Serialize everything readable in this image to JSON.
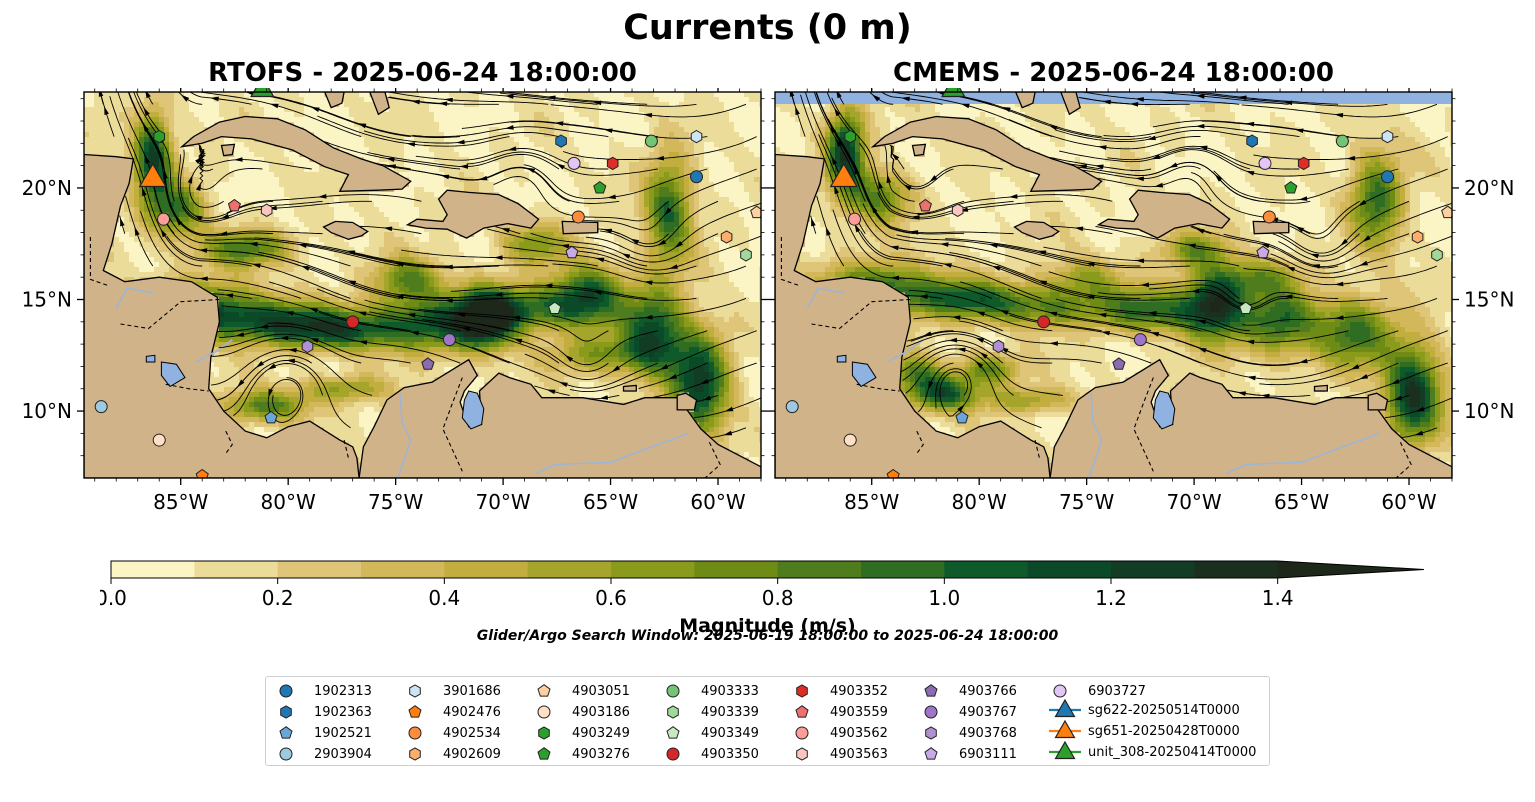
{
  "figure": {
    "suptitle": "Currents (0 m)",
    "search_window": "Glider/Argo Search Window: 2025-06-19 18:00:00 to 2025-06-24 18:00:00"
  },
  "chart_data": [
    {
      "type": "heatmap",
      "title": "RTOFS - 2025-06-24 18:00:00",
      "variable": "surface current magnitude with streamlines",
      "xlim": [
        -89.5,
        -58.0
      ],
      "ylim": [
        7.0,
        24.3
      ],
      "x_ticks": [
        "85°W",
        "80°W",
        "75°W",
        "70°W",
        "65°W",
        "60°W"
      ],
      "y_ticks": [
        "10°N",
        "15°N",
        "20°N"
      ],
      "y_tick_side": "left"
    },
    {
      "type": "heatmap",
      "title": "CMEMS - 2025-06-24 18:00:00",
      "variable": "surface current magnitude with streamlines",
      "xlim": [
        -89.5,
        -58.0
      ],
      "ylim": [
        7.0,
        24.3
      ],
      "x_ticks": [
        "85°W",
        "80°W",
        "75°W",
        "70°W",
        "65°W",
        "60°W"
      ],
      "y_ticks": [
        "10°N",
        "15°N",
        "20°N"
      ],
      "y_tick_side": "right"
    }
  ],
  "colorbar": {
    "label": "Magnitude (m/s)",
    "min": 0.0,
    "max": 1.5,
    "extend": "max",
    "ticks": [
      "0.0",
      "0.2",
      "0.4",
      "0.6",
      "0.8",
      "1.0",
      "1.2",
      "1.4"
    ],
    "colors": [
      "#fbf5c5",
      "#ecdc9a",
      "#dec577",
      "#d2b85a",
      "#c2ad3f",
      "#a4a52a",
      "#8a9a1b",
      "#6e8c15",
      "#4f7c1d",
      "#2f6d23",
      "#0e5a2a",
      "#0b4a28",
      "#133c24",
      "#1b2f1e",
      "#1d281a"
    ]
  },
  "platforms": [
    {
      "id": "1902313",
      "marker": "circle",
      "color": "#1f77b4",
      "lon": -61.0,
      "lat": 20.5
    },
    {
      "id": "1902363",
      "marker": "hexagon",
      "color": "#1f77b4",
      "lon": -67.3,
      "lat": 22.1
    },
    {
      "id": "1902521",
      "marker": "pentagon",
      "color": "#6aa7d8",
      "lon": -80.8,
      "lat": 9.7
    },
    {
      "id": "2903904",
      "marker": "circle",
      "color": "#9ecae1",
      "lon": -88.7,
      "lat": 10.2
    },
    {
      "id": "3901686",
      "marker": "hexagon",
      "color": "#cde4f5",
      "lon": -61.0,
      "lat": 22.3
    },
    {
      "id": "4902476",
      "marker": "pentagon",
      "color": "#ff7f0e",
      "lon": -84.0,
      "lat": 7.1
    },
    {
      "id": "4902534",
      "marker": "circle",
      "color": "#fd8d3c",
      "lon": -66.5,
      "lat": 18.7
    },
    {
      "id": "4902609",
      "marker": "hexagon",
      "color": "#fdae6b",
      "lon": -59.6,
      "lat": 17.8
    },
    {
      "id": "4903051",
      "marker": "pentagon",
      "color": "#fdd0a2",
      "lon": -58.2,
      "lat": 18.9
    },
    {
      "id": "4903186",
      "marker": "circle",
      "color": "#fde0c5",
      "lon": -86.0,
      "lat": 8.7
    },
    {
      "id": "4903249",
      "marker": "hexagon",
      "color": "#2ca02c",
      "lon": -86.0,
      "lat": 22.3
    },
    {
      "id": "4903276",
      "marker": "pentagon",
      "color": "#2ca02c",
      "lon": -65.5,
      "lat": 20.0
    },
    {
      "id": "4903333",
      "marker": "circle",
      "color": "#74c476",
      "lon": -63.1,
      "lat": 22.1
    },
    {
      "id": "4903339",
      "marker": "hexagon",
      "color": "#a1d99b",
      "lon": -58.7,
      "lat": 17.0
    },
    {
      "id": "4903349",
      "marker": "pentagon",
      "color": "#c7e9c0",
      "lon": -67.6,
      "lat": 14.6
    },
    {
      "id": "4903350",
      "marker": "circle",
      "color": "#d62728",
      "lon": -77.0,
      "lat": 14.0
    },
    {
      "id": "4903352",
      "marker": "hexagon",
      "color": "#de2d26",
      "lon": -64.9,
      "lat": 21.1
    },
    {
      "id": "4903559",
      "marker": "pentagon",
      "color": "#ef6e6e",
      "lon": -82.5,
      "lat": 19.2
    },
    {
      "id": "4903562",
      "marker": "circle",
      "color": "#fc9d9a",
      "lon": -85.8,
      "lat": 18.6
    },
    {
      "id": "4903563",
      "marker": "hexagon",
      "color": "#fcc5c0",
      "lon": -81.0,
      "lat": 19.0
    },
    {
      "id": "4903766",
      "marker": "pentagon",
      "color": "#8c6bb1",
      "lon": -73.5,
      "lat": 12.1
    },
    {
      "id": "4903767",
      "marker": "circle",
      "color": "#9e75c8",
      "lon": -72.5,
      "lat": 13.2
    },
    {
      "id": "4903768",
      "marker": "hexagon",
      "color": "#b18fd3",
      "lon": -79.1,
      "lat": 12.9
    },
    {
      "id": "6903111",
      "marker": "pentagon",
      "color": "#c8a9e6",
      "lon": -66.8,
      "lat": 17.1
    },
    {
      "id": "6903727",
      "marker": "circle",
      "color": "#e3c6f5",
      "lon": -66.7,
      "lat": 21.1
    }
  ],
  "gliders": [
    {
      "id": "sg622-20250514T0000",
      "marker": "triangle",
      "color": "#1f77b4",
      "lon": null,
      "lat": null
    },
    {
      "id": "sg651-20250428T0000",
      "marker": "triangle",
      "color": "#ff7f0e",
      "lon": -86.3,
      "lat": 20.4
    },
    {
      "id": "unit_308-20250414T0000",
      "marker": "triangle",
      "color": "#2ca02c",
      "lon": -81.2,
      "lat": 24.3
    }
  ],
  "colors": {
    "land": "#d1b38a",
    "water_body": "#8fb2e0",
    "river": "#9db5d5",
    "stream": "#000000"
  }
}
